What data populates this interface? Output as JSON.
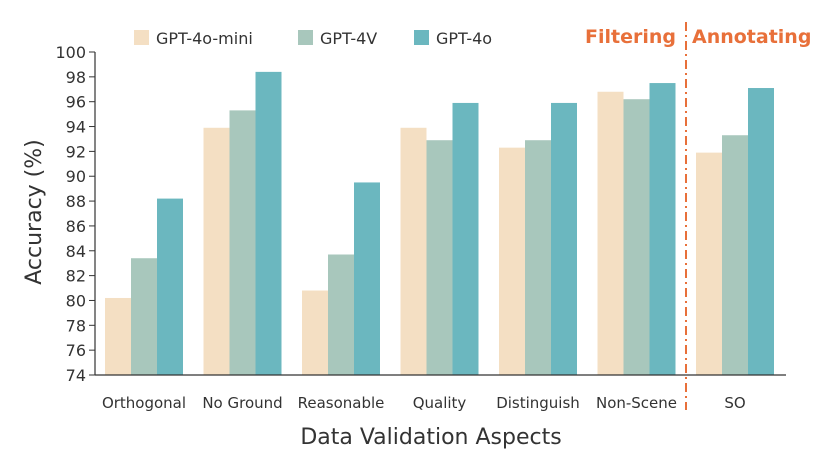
{
  "chart_data": {
    "type": "bar",
    "title": "",
    "xlabel": "Data Validation Aspects",
    "ylabel": "Accuracy (%)",
    "ylim": [
      74,
      100
    ],
    "yticks": [
      74,
      76,
      78,
      80,
      82,
      84,
      86,
      88,
      90,
      92,
      94,
      96,
      98,
      100
    ],
    "categories": [
      "Orthogonal",
      "No Ground",
      "Reasonable",
      "Quality",
      "Distinguish",
      "Non-Scene",
      "SO"
    ],
    "series": [
      {
        "name": "GPT-4o-mini",
        "color": "#f4dfc3",
        "values": [
          80.2,
          93.9,
          80.8,
          93.9,
          92.3,
          96.8,
          91.9
        ]
      },
      {
        "name": "GPT-4V",
        "color": "#a8c7bc",
        "values": [
          83.4,
          95.3,
          83.7,
          92.9,
          92.9,
          96.2,
          93.3
        ]
      },
      {
        "name": "GPT-4o",
        "color": "#6bb7bf",
        "values": [
          88.2,
          98.4,
          89.5,
          95.9,
          95.9,
          97.5,
          97.1
        ]
      }
    ],
    "legend_position": "top-left",
    "annotations": [
      {
        "text": "Filtering",
        "color": "#e8703a"
      },
      {
        "text": "Annotating",
        "color": "#e8703a"
      }
    ],
    "divider_color": "#e8703a",
    "grid": false
  }
}
